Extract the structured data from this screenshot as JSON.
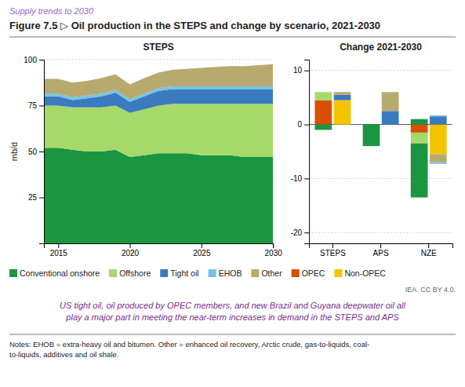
{
  "title": "Figure 7.5 ▷ Oil production in the STEPS and change by scenario, 2021-2030",
  "subtitle": "Supply trends to 2030",
  "legend": "bottom",
  "annotations": [
    "IEA. CC BY 4.0.",
    "US tight oil, oil produced by OPEC members, and new Brazil and Guyana deepwater oil all\nplay a major part in meeting the near-term increases in demand in the STEPS and APS",
    "Notes: EHOB = extra-heavy oil and bitumen. Other = enhanced oil recovery, Arctic crude, gas-to-liquids, coal-\nto-liquids, additives and oil shale."
  ],
  "chart_data": [
    {
      "type": "area",
      "stacked": true,
      "title": "STEPS",
      "ylabel": "mb/d",
      "x": [
        2014,
        2015,
        2016,
        2017,
        2018,
        2019,
        2020,
        2021,
        2022,
        2023,
        2024,
        2025,
        2026,
        2027,
        2028,
        2029,
        2030
      ],
      "xlim": [
        2014,
        2030
      ],
      "xticks": [
        2015,
        2020,
        2025,
        2030
      ],
      "ylim": [
        0,
        100
      ],
      "yticks": [
        25,
        50,
        75,
        100
      ],
      "grid": true,
      "series": [
        {
          "name": "Conventional onshore",
          "color": "#1a9641",
          "values": [
            52,
            52,
            51,
            50,
            50,
            51,
            47,
            48,
            49,
            49,
            49,
            48,
            48,
            48,
            47,
            47,
            47
          ]
        },
        {
          "name": "Offshore",
          "color": "#a6d96a",
          "values": [
            23,
            23,
            23,
            24,
            24,
            24,
            24,
            25,
            26,
            27,
            27,
            28,
            28,
            28,
            29,
            29,
            29
          ]
        },
        {
          "name": "Tight oil",
          "color": "#3a7abf",
          "values": [
            5,
            5,
            4,
            5,
            6,
            7,
            6,
            7,
            8,
            8,
            8,
            8,
            8,
            8,
            8,
            8,
            8
          ]
        },
        {
          "name": "EHOB",
          "color": "#74c4e8",
          "values": [
            1.5,
            1.5,
            1.5,
            1.5,
            1.5,
            1.5,
            1.5,
            1.5,
            1.5,
            1.5,
            1.5,
            1.5,
            1.5,
            1.5,
            1.5,
            1.5,
            1.5
          ]
        },
        {
          "name": "Other",
          "color": "#b8a96e",
          "values": [
            8,
            8,
            8,
            8,
            8.5,
            8.5,
            8,
            8.5,
            8.5,
            9,
            9.5,
            10,
            10.5,
            11,
            11,
            11.5,
            12
          ]
        }
      ]
    },
    {
      "type": "bar",
      "stacked": true,
      "title": "Change 2021-2030",
      "categories": [
        "STEPS",
        "APS",
        "NZE"
      ],
      "ylim": [
        -22,
        12
      ],
      "yticks": [
        -20,
        -10,
        0,
        10
      ],
      "grid": true,
      "stacks": [
        {
          "series": [
            {
              "name": "OPEC",
              "color": "#d94f00",
              "values": [
                4.5,
                0.0,
                0.0
              ],
              "negative_values": [
                0.0,
                0.0,
                -1.5
              ]
            },
            {
              "name": "Offshore",
              "color": "#a6d96a",
              "values": [
                1.5,
                0.0,
                0.0
              ],
              "negative_values": [
                0.0,
                0.0,
                -2.0
              ]
            },
            {
              "name": "Conventional onshore",
              "color": "#1a9641",
              "values": [
                0.0,
                0.0,
                1.0
              ],
              "negative_values": [
                -1.0,
                -4.0,
                -10.0
              ]
            }
          ]
        },
        {
          "series": [
            {
              "name": "Non-OPEC",
              "color": "#f5c400",
              "values": [
                4.5,
                0.0,
                0.0
              ],
              "negative_values": [
                0.0,
                0.0,
                -5.5
              ]
            },
            {
              "name": "Tight oil",
              "color": "#3a7abf",
              "values": [
                1.0,
                2.5,
                1.5
              ],
              "negative_values": [
                0.0,
                0.0,
                0.0
              ]
            },
            {
              "name": "Other",
              "color": "#b8a96e",
              "values": [
                0.5,
                3.5,
                0.0
              ],
              "negative_values": [
                0.0,
                0.0,
                -1.5
              ]
            },
            {
              "name": "EHOB",
              "color": "#74c4e8",
              "values": [
                0.0,
                0.0,
                0.2
              ],
              "negative_values": [
                0.0,
                0.0,
                -0.3
              ]
            }
          ]
        }
      ]
    }
  ]
}
